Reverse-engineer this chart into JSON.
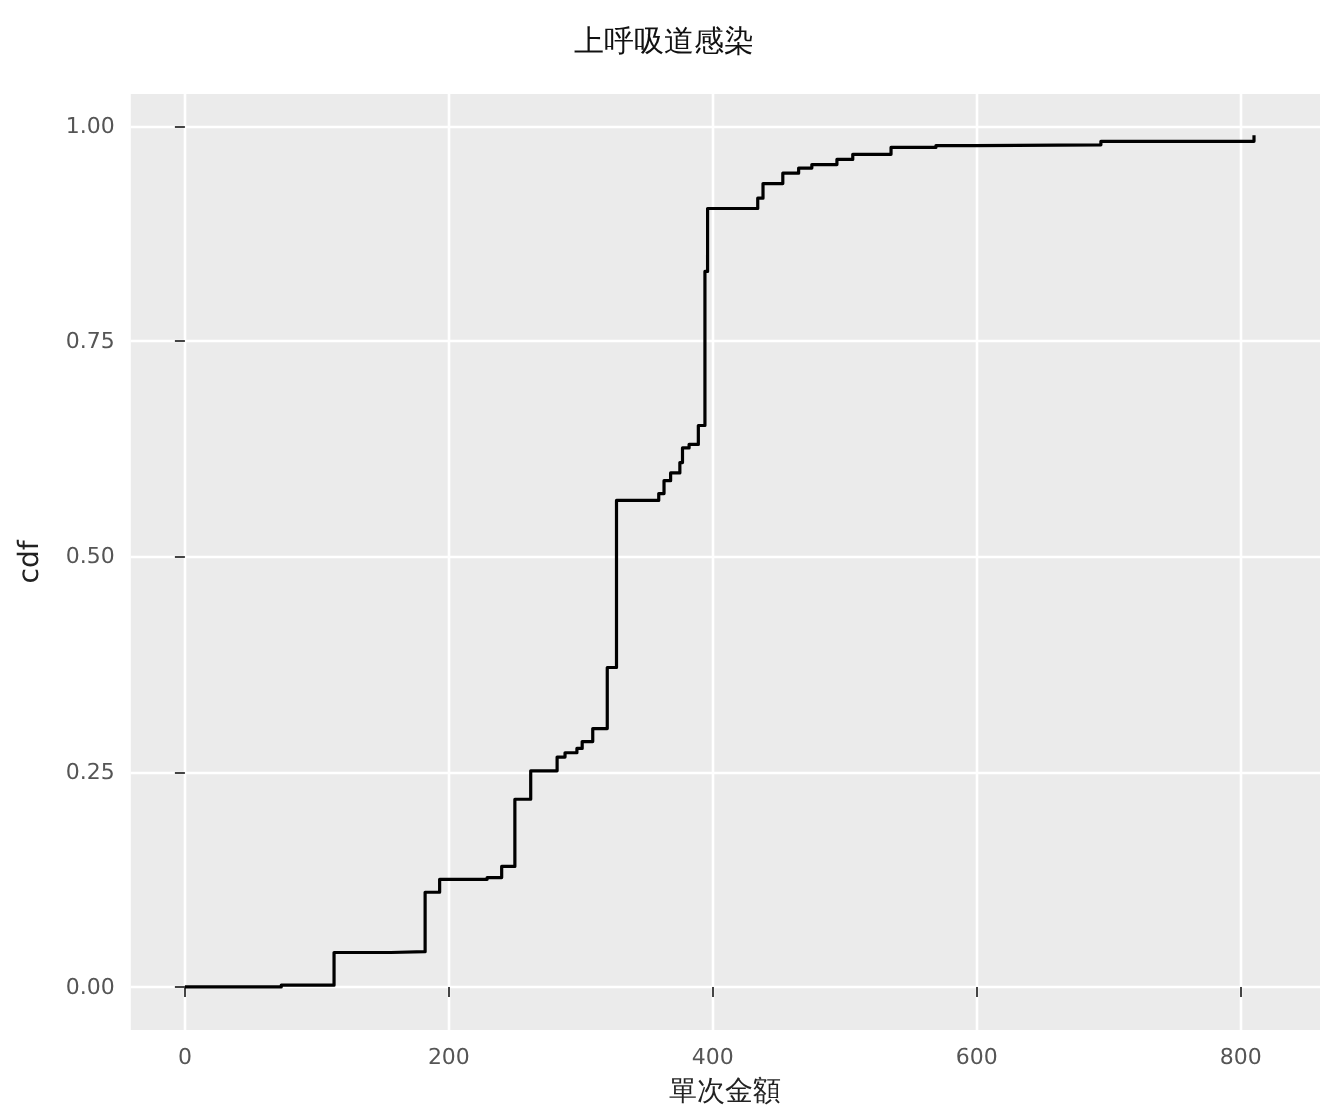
{
  "chart_data": {
    "type": "step",
    "title": "上呼吸道感染",
    "xlabel": "單次金額",
    "ylabel": "cdf",
    "xlim": [
      -41,
      860
    ],
    "xticks": [
      0,
      200,
      400,
      600,
      800
    ],
    "ylim": [
      -0.05,
      1.037
    ],
    "yticks": [
      {
        "value": 0,
        "label": "0.00"
      },
      {
        "value": 0.25,
        "label": "0.25"
      },
      {
        "value": 0.5,
        "label": "0.50"
      },
      {
        "value": 0.75,
        "label": "0.75"
      },
      {
        "value": 1,
        "label": "1.00"
      }
    ],
    "grid": true,
    "line_style": "solid",
    "marker": "none",
    "series": [
      {
        "color": "#000000",
        "x": [
          0,
          73,
          113,
          156,
          182,
          193,
          229,
          240,
          250,
          262,
          282,
          288,
          297,
          301,
          309,
          320,
          327,
          359,
          363,
          368,
          375,
          377,
          382,
          389,
          394,
          396,
          434,
          438,
          453,
          465,
          475,
          494,
          506,
          535,
          569,
          598,
          694,
          810
        ],
        "values": [
          0,
          0.002,
          0.04,
          0.041,
          0.11,
          0.125,
          0.127,
          0.14,
          0.218,
          0.251,
          0.267,
          0.272,
          0.277,
          0.285,
          0.3,
          0.371,
          0.565,
          0.573,
          0.588,
          0.597,
          0.609,
          0.626,
          0.63,
          0.652,
          0.831,
          0.904,
          0.916,
          0.933,
          0.945,
          0.951,
          0.955,
          0.961,
          0.967,
          0.975,
          0.977,
          0.978,
          0.982,
          0.989
        ]
      }
    ]
  }
}
